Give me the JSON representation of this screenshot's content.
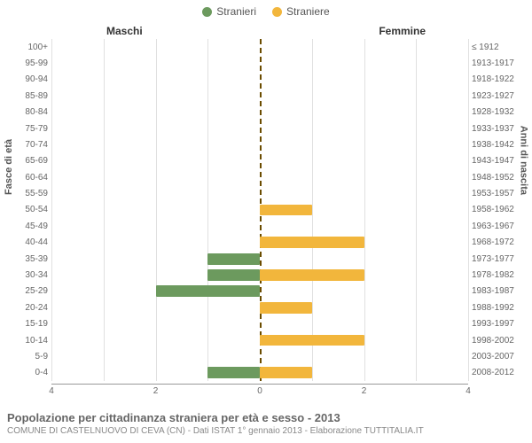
{
  "legend": {
    "male": {
      "label": "Stranieri",
      "color": "#6c9a5e"
    },
    "female": {
      "label": "Straniere",
      "color": "#f2b63c"
    }
  },
  "headers": {
    "left": "Maschi",
    "right": "Femmine"
  },
  "axis_labels": {
    "left": "Fasce di età",
    "right": "Anni di nascita"
  },
  "caption": {
    "title": "Popolazione per cittadinanza straniera per età e sesso - 2013",
    "sub": "COMUNE DI CASTELNUOVO DI CEVA (CN) - Dati ISTAT 1° gennaio 2013 - Elaborazione TUTTITALIA.IT"
  },
  "chart": {
    "type": "bar-pyramid",
    "xmax": 4,
    "xticks": [
      4,
      2,
      0,
      2,
      4
    ],
    "grid_color": "#e0e0e0",
    "center_line_color": "#6b4c00",
    "background_color": "#ffffff",
    "bar_color_male": "#6c9a5e",
    "bar_color_female": "#f2b63c",
    "label_fontsize": 10,
    "rows": [
      {
        "age": "100+",
        "year": "≤ 1912",
        "male": 0,
        "female": 0
      },
      {
        "age": "95-99",
        "year": "1913-1917",
        "male": 0,
        "female": 0
      },
      {
        "age": "90-94",
        "year": "1918-1922",
        "male": 0,
        "female": 0
      },
      {
        "age": "85-89",
        "year": "1923-1927",
        "male": 0,
        "female": 0
      },
      {
        "age": "80-84",
        "year": "1928-1932",
        "male": 0,
        "female": 0
      },
      {
        "age": "75-79",
        "year": "1933-1937",
        "male": 0,
        "female": 0
      },
      {
        "age": "70-74",
        "year": "1938-1942",
        "male": 0,
        "female": 0
      },
      {
        "age": "65-69",
        "year": "1943-1947",
        "male": 0,
        "female": 0
      },
      {
        "age": "60-64",
        "year": "1948-1952",
        "male": 0,
        "female": 0
      },
      {
        "age": "55-59",
        "year": "1953-1957",
        "male": 0,
        "female": 0
      },
      {
        "age": "50-54",
        "year": "1958-1962",
        "male": 0,
        "female": 1
      },
      {
        "age": "45-49",
        "year": "1963-1967",
        "male": 0,
        "female": 0
      },
      {
        "age": "40-44",
        "year": "1968-1972",
        "male": 0,
        "female": 2
      },
      {
        "age": "35-39",
        "year": "1973-1977",
        "male": 1,
        "female": 0
      },
      {
        "age": "30-34",
        "year": "1978-1982",
        "male": 1,
        "female": 2
      },
      {
        "age": "25-29",
        "year": "1983-1987",
        "male": 2,
        "female": 0
      },
      {
        "age": "20-24",
        "year": "1988-1992",
        "male": 0,
        "female": 1
      },
      {
        "age": "15-19",
        "year": "1993-1997",
        "male": 0,
        "female": 0
      },
      {
        "age": "10-14",
        "year": "1998-2002",
        "male": 0,
        "female": 2
      },
      {
        "age": "5-9",
        "year": "2003-2007",
        "male": 0,
        "female": 0
      },
      {
        "age": "0-4",
        "year": "2008-2012",
        "male": 1,
        "female": 1
      }
    ]
  }
}
